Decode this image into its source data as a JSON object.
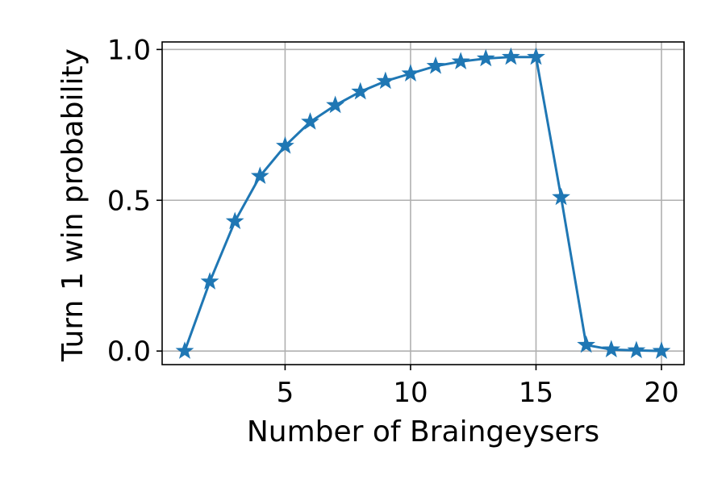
{
  "chart_data": {
    "type": "line",
    "title": "",
    "xlabel": "Number of Braingeysers",
    "ylabel": "Turn 1 win probability",
    "xlim": [
      0.1,
      20.9
    ],
    "ylim": [
      -0.045,
      1.025
    ],
    "xticks": [
      5,
      10,
      15,
      20
    ],
    "xtick_labels": [
      "5",
      "10",
      "15",
      "20"
    ],
    "yticks": [
      0.0,
      0.5,
      1.0
    ],
    "ytick_labels": [
      "0.0",
      "0.5",
      "1.0"
    ],
    "grid": true,
    "marker": "star",
    "color": "#1f77b4",
    "series": [
      {
        "x": [
          1,
          2,
          3,
          4,
          5,
          6,
          7,
          8,
          9,
          10,
          11,
          12,
          13,
          14,
          15,
          16,
          17,
          18,
          19,
          20
        ],
        "values": [
          0.0,
          0.23,
          0.43,
          0.58,
          0.68,
          0.76,
          0.815,
          0.86,
          0.895,
          0.92,
          0.945,
          0.96,
          0.97,
          0.975,
          0.975,
          0.51,
          0.02,
          0.005,
          0.002,
          0.0
        ]
      }
    ]
  }
}
